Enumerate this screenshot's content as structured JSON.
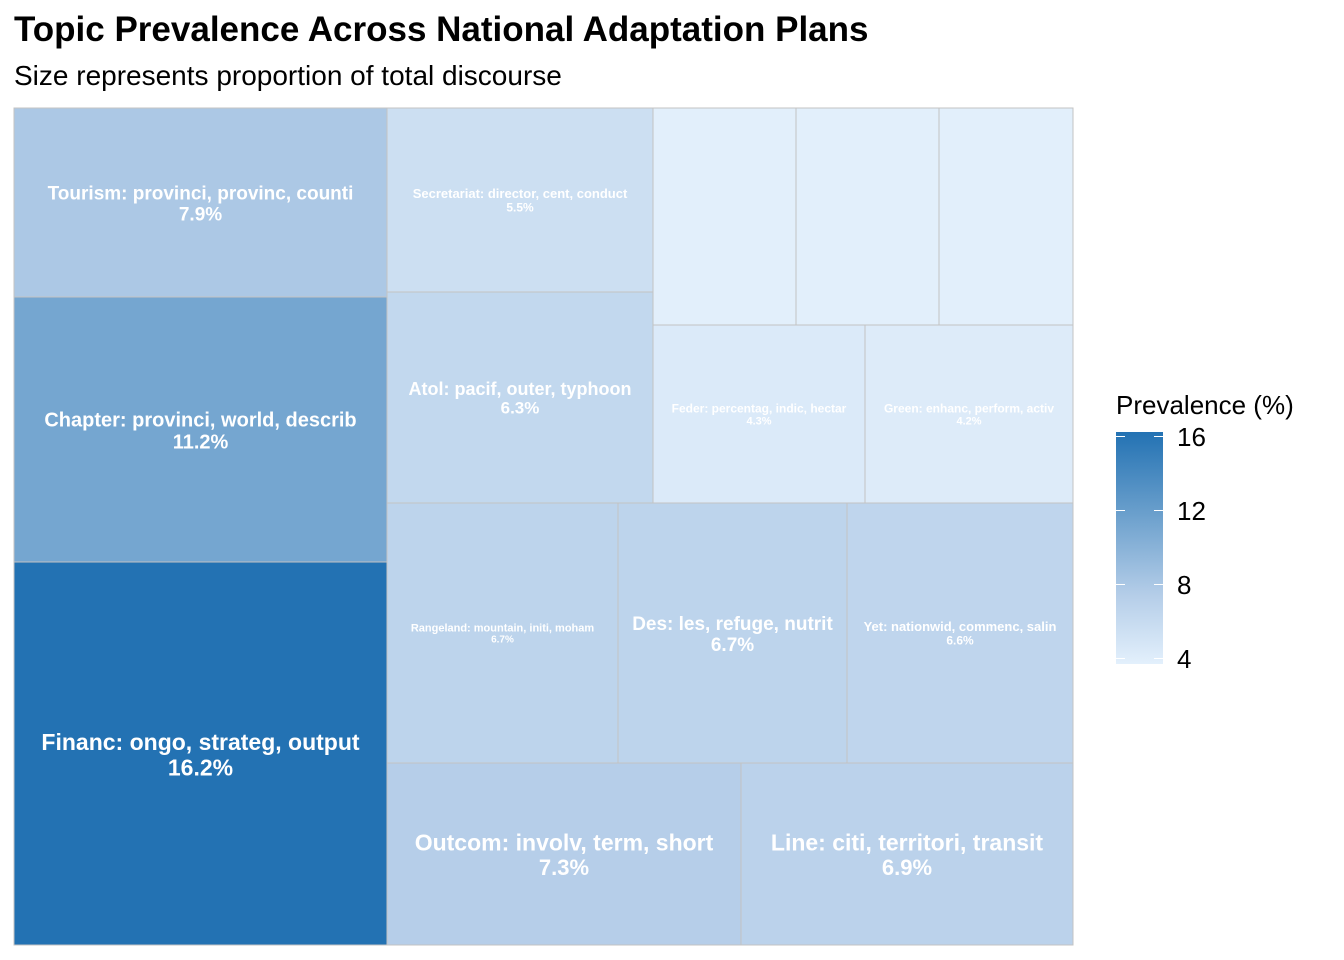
{
  "chart_data": {
    "type": "treemap",
    "title": "Topic Prevalence Across National Adaptation Plans",
    "subtitle": "Size represents proportion of total discourse",
    "legend": {
      "title": "Prevalence (%)",
      "ticks": [
        16,
        12,
        8,
        4
      ],
      "range": [
        3.7,
        16.2
      ],
      "colors": [
        "#2372b3",
        "#e3f0fc"
      ],
      "placement": "right"
    },
    "tiles": [
      {
        "label": "Financ: ongo, strateg, output",
        "value_label": "16.2%",
        "value": 16.2
      },
      {
        "label": "Chapter: provinci, world, describ",
        "value_label": "11.2%",
        "value": 11.2
      },
      {
        "label": "Tourism: provinci, provinc, counti",
        "value_label": "7.9%",
        "value": 7.9
      },
      {
        "label": "Outcom: involv, term, short",
        "value_label": "7.3%",
        "value": 7.3
      },
      {
        "label": "Line: citi, territori, transit",
        "value_label": "6.9%",
        "value": 6.9
      },
      {
        "label": "Rangeland: mountain, initi, moham",
        "value_label": "6.7%",
        "value": 6.7
      },
      {
        "label": "Des: les, refuge, nutrit",
        "value_label": "6.7%",
        "value": 6.7
      },
      {
        "label": "Yet: nationwid, commenc, salin",
        "value_label": "6.6%",
        "value": 6.6
      },
      {
        "label": "Atol: pacif, outer, typhoon",
        "value_label": "6.3%",
        "value": 6.3
      },
      {
        "label": "Secretariat: director, cent, conduct",
        "value_label": "5.5%",
        "value": 5.5
      },
      {
        "label": "Feder: percentag, indic, hectar",
        "value_label": "4.3%",
        "value": 4.3
      },
      {
        "label": "Green: enhanc, perform, activ",
        "value_label": "4.2%",
        "value": 4.2
      },
      {
        "label": "",
        "value_label": "",
        "value": 3.8
      },
      {
        "label": "",
        "value_label": "",
        "value": 3.8
      },
      {
        "label": "",
        "value_label": "",
        "value": 3.8
      }
    ]
  }
}
